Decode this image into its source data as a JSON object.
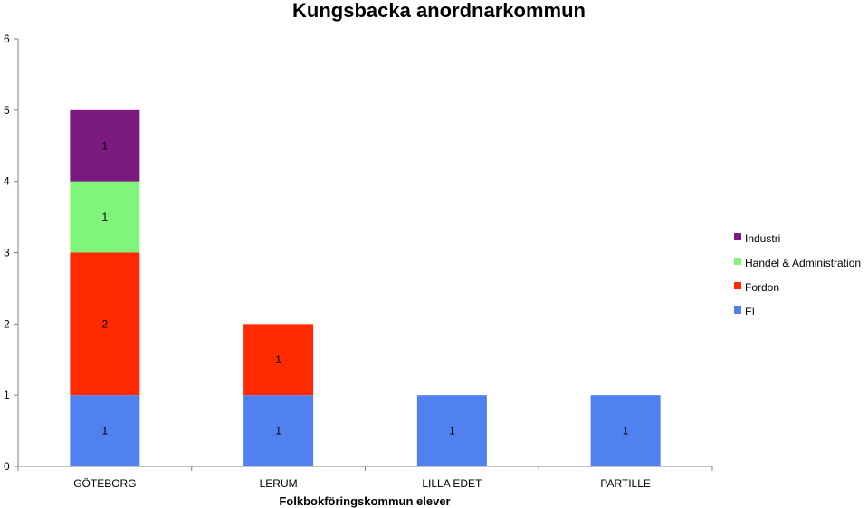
{
  "chart_data": {
    "type": "bar",
    "stacked": true,
    "title": "Kungsbacka anordnarkommun",
    "xlabel": "Folkbokföringskommun elever",
    "ylabel": "",
    "ylim": [
      0,
      6
    ],
    "yticks": [
      "0",
      "1",
      "2",
      "3",
      "4",
      "5",
      "6"
    ],
    "categories": [
      "GÖTEBORG",
      "LERUM",
      "LILLA EDET",
      "PARTILLE"
    ],
    "series": [
      {
        "name": "El",
        "color": "#4f81f0",
        "values": [
          1,
          1,
          1,
          1
        ]
      },
      {
        "name": "Fordon",
        "color": "#ff2a00",
        "values": [
          2,
          1,
          0,
          0
        ]
      },
      {
        "name": "Handel & Administration",
        "color": "#7ff57a",
        "values": [
          1,
          0,
          0,
          0
        ]
      },
      {
        "name": "Industri",
        "color": "#7b1a7f",
        "values": [
          1,
          0,
          0,
          0
        ]
      }
    ],
    "legend": {
      "placement": "right",
      "order": [
        "Industri",
        "Handel & Administration",
        "Fordon",
        "El"
      ]
    },
    "grid": false
  }
}
